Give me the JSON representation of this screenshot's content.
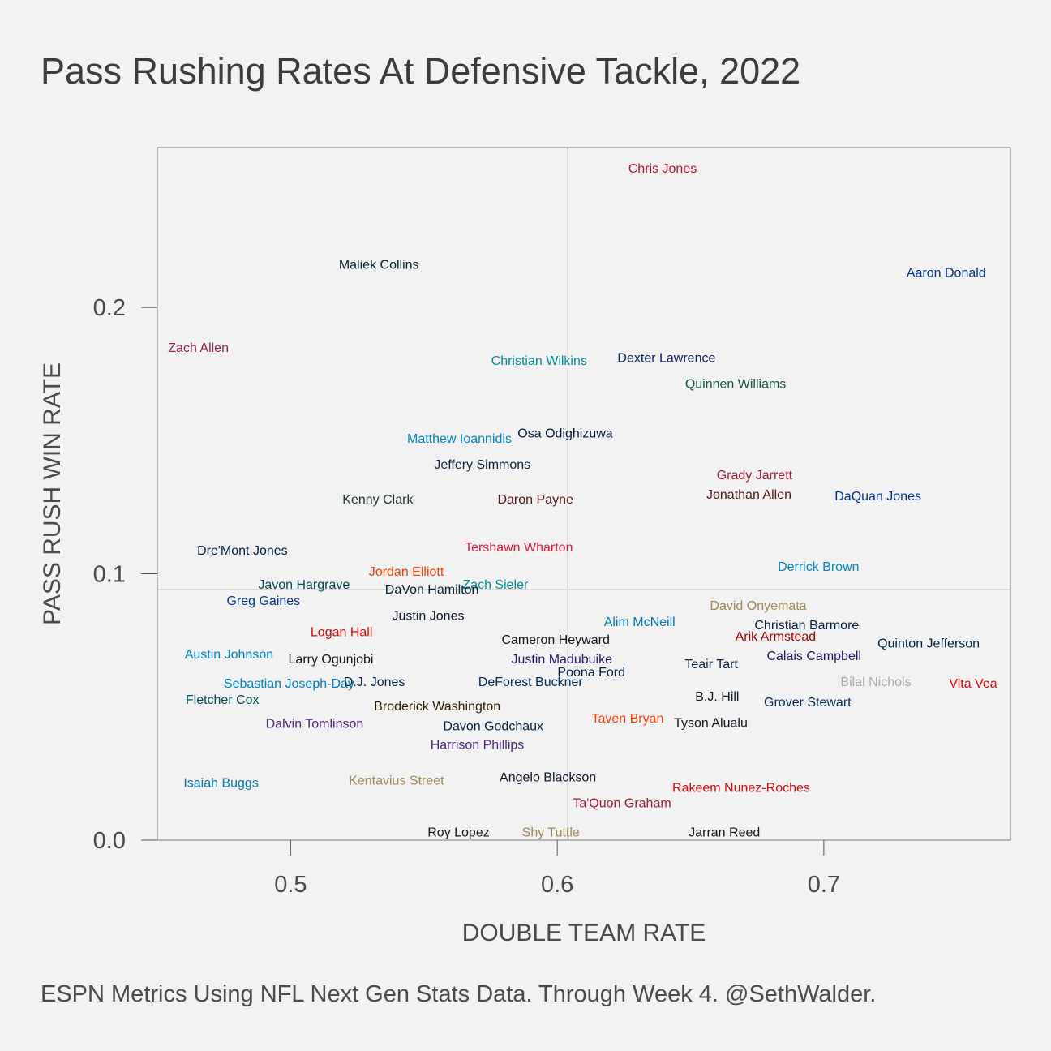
{
  "chart_data": {
    "type": "scatter",
    "title": "Pass Rushing Rates At Defensive Tackle, 2022",
    "caption": "ESPN Metrics Using NFL Next Gen Stats Data. Through Week 4. @SethWalder.",
    "xlabel": "DOUBLE TEAM RATE",
    "ylabel": "PASS RUSH WIN RATE",
    "xlim": [
      0.45,
      0.77
    ],
    "ylim": [
      0.0,
      0.26
    ],
    "xticks": [
      "0.5",
      "0.6",
      "0.7"
    ],
    "yticks": [
      "0.0",
      "0.1",
      "0.2"
    ],
    "reference_lines": {
      "x": 0.604,
      "y": 0.094
    },
    "grid": false,
    "points": [
      {
        "label": "Chris Jones",
        "x": 0.6395,
        "y": 0.2522,
        "color": "#c8102e"
      },
      {
        "label": "Maliek Collins",
        "x": 0.5331,
        "y": 0.2161,
        "color": "#03202f"
      },
      {
        "label": "Aaron Donald",
        "x": 0.7459,
        "y": 0.2131,
        "color": "#003594"
      },
      {
        "label": "Zach Allen",
        "x": 0.4654,
        "y": 0.185,
        "color": "#97233f"
      },
      {
        "label": "Christian Wilkins",
        "x": 0.5932,
        "y": 0.1801,
        "color": "#008e97"
      },
      {
        "label": "Dexter Lawrence",
        "x": 0.641,
        "y": 0.1811,
        "color": "#0b2265"
      },
      {
        "label": "Quinnen Williams",
        "x": 0.6669,
        "y": 0.1714,
        "color": "#125740"
      },
      {
        "label": "Matthew Ioannidis",
        "x": 0.5633,
        "y": 0.1509,
        "color": "#0085ca"
      },
      {
        "label": "Osa Odighizuwa",
        "x": 0.603,
        "y": 0.1529,
        "color": "#041e42"
      },
      {
        "label": "Jeffery Simmons",
        "x": 0.5719,
        "y": 0.1411,
        "color": "#0c2340"
      },
      {
        "label": "Grady Jarrett",
        "x": 0.674,
        "y": 0.1371,
        "color": "#a71930"
      },
      {
        "label": "Kenny Clark",
        "x": 0.5327,
        "y": 0.128,
        "color": "#203731"
      },
      {
        "label": "Daron Payne",
        "x": 0.5918,
        "y": 0.128,
        "color": "#5a1414"
      },
      {
        "label": "Jonathan Allen",
        "x": 0.6719,
        "y": 0.1298,
        "color": "#5a1414"
      },
      {
        "label": "DaQuan Jones",
        "x": 0.7203,
        "y": 0.1292,
        "color": "#00338d"
      },
      {
        "label": "Tershawn Wharton",
        "x": 0.5856,
        "y": 0.11,
        "color": "#e31837"
      },
      {
        "label": "Dre'Mont Jones",
        "x": 0.4819,
        "y": 0.1088,
        "color": "#002244"
      },
      {
        "label": "Derrick Brown",
        "x": 0.698,
        "y": 0.1027,
        "color": "#0085ca"
      },
      {
        "label": "Jordan Elliott",
        "x": 0.5434,
        "y": 0.1009,
        "color": "#ff3c00"
      },
      {
        "label": "Javon Hargrave",
        "x": 0.505,
        "y": 0.096,
        "color": "#004c54"
      },
      {
        "label": "Zach Sieler",
        "x": 0.5768,
        "y": 0.096,
        "color": "#008e97"
      },
      {
        "label": "DaVon Hamilton",
        "x": 0.553,
        "y": 0.0942,
        "color": "#03202f"
      },
      {
        "label": "Greg Gaines",
        "x": 0.4898,
        "y": 0.0899,
        "color": "#003594"
      },
      {
        "label": "David Onyemata",
        "x": 0.6754,
        "y": 0.0881,
        "color": "#9f8958"
      },
      {
        "label": "Justin Jones",
        "x": 0.5516,
        "y": 0.0844,
        "color": "#0b162a"
      },
      {
        "label": "Alim McNeill",
        "x": 0.6309,
        "y": 0.082,
        "color": "#0076b6"
      },
      {
        "label": "Christian Barmore",
        "x": 0.6936,
        "y": 0.0808,
        "color": "#002244"
      },
      {
        "label": "Logan Hall",
        "x": 0.5191,
        "y": 0.0783,
        "color": "#d50a0a"
      },
      {
        "label": "Arik Armstead",
        "x": 0.6819,
        "y": 0.0765,
        "color": "#aa0000"
      },
      {
        "label": "Cameron Heyward",
        "x": 0.5994,
        "y": 0.0753,
        "color": "#101820"
      },
      {
        "label": "Quinton Jefferson",
        "x": 0.7393,
        "y": 0.074,
        "color": "#002244"
      },
      {
        "label": "Austin Johnson",
        "x": 0.4769,
        "y": 0.0698,
        "color": "#0080c6"
      },
      {
        "label": "Calais Campbell",
        "x": 0.6963,
        "y": 0.0692,
        "color": "#241773"
      },
      {
        "label": "Larry Ogunjobi",
        "x": 0.5151,
        "y": 0.068,
        "color": "#101820"
      },
      {
        "label": "Justin Madubuike",
        "x": 0.6017,
        "y": 0.068,
        "color": "#241773"
      },
      {
        "label": "Teair Tart",
        "x": 0.6578,
        "y": 0.0662,
        "color": "#0c2340"
      },
      {
        "label": "Poona Ford",
        "x": 0.6128,
        "y": 0.0631,
        "color": "#002244"
      },
      {
        "label": "Sebastian Joseph-Day",
        "x": 0.4994,
        "y": 0.0589,
        "color": "#0080c6"
      },
      {
        "label": "D.J. Jones",
        "x": 0.5314,
        "y": 0.0595,
        "color": "#002244"
      },
      {
        "label": "DeForest Buckner",
        "x": 0.59,
        "y": 0.0595,
        "color": "#002c5f"
      },
      {
        "label": "Bilal Nichols",
        "x": 0.7195,
        "y": 0.0595,
        "color": "#a5acaf"
      },
      {
        "label": "Vita Vea",
        "x": 0.756,
        "y": 0.0589,
        "color": "#d50a0a"
      },
      {
        "label": "Fletcher Cox",
        "x": 0.4744,
        "y": 0.0528,
        "color": "#004c54"
      },
      {
        "label": "B.J. Hill",
        "x": 0.66,
        "y": 0.054,
        "color": "#101820"
      },
      {
        "label": "Grover Stewart",
        "x": 0.6939,
        "y": 0.0519,
        "color": "#002c5f"
      },
      {
        "label": "Broderick Washington",
        "x": 0.555,
        "y": 0.0504,
        "color": "#311d00"
      },
      {
        "label": "Dalvin Tomlinson",
        "x": 0.509,
        "y": 0.0439,
        "color": "#4f2683"
      },
      {
        "label": "Taven Bryan",
        "x": 0.6264,
        "y": 0.0458,
        "color": "#ff3c00"
      },
      {
        "label": "Davon Godchaux",
        "x": 0.576,
        "y": 0.043,
        "color": "#002244"
      },
      {
        "label": "Tyson Alualu",
        "x": 0.6576,
        "y": 0.0442,
        "color": "#101820"
      },
      {
        "label": "Harrison Phillips",
        "x": 0.57,
        "y": 0.036,
        "color": "#4f2683"
      },
      {
        "label": "Isaiah Buggs",
        "x": 0.4739,
        "y": 0.0216,
        "color": "#0076b6"
      },
      {
        "label": "Kentavius Street",
        "x": 0.5397,
        "y": 0.0226,
        "color": "#9f8958"
      },
      {
        "label": "Angelo Blackson",
        "x": 0.5965,
        "y": 0.0238,
        "color": "#0b162a"
      },
      {
        "label": "Rakeem Nunez-Roches",
        "x": 0.669,
        "y": 0.0198,
        "color": "#d50a0a"
      },
      {
        "label": "Ta'Quon Graham",
        "x": 0.6243,
        "y": 0.014,
        "color": "#a71930"
      },
      {
        "label": "Roy Lopez",
        "x": 0.563,
        "y": 0.003,
        "color": "#101820"
      },
      {
        "label": "Shy Tuttle",
        "x": 0.5976,
        "y": 0.003,
        "color": "#9f8958"
      },
      {
        "label": "Jarran Reed",
        "x": 0.6627,
        "y": 0.003,
        "color": "#101820"
      }
    ]
  }
}
